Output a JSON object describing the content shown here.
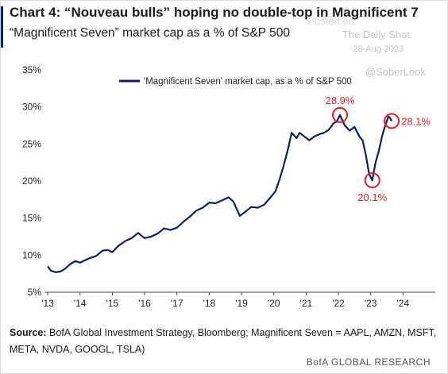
{
  "header": {
    "title": "Chart 4: “Nouveau bulls” hoping no double-top in Magnificent 7",
    "subtitle": "“Magnificent Seven” market cap as a % of S&P 500"
  },
  "watermark": {
    "brand": "The Daily Shot",
    "brand_prefix": "Posted on",
    "date": "28-Aug-2023",
    "handle": "@SoberLook"
  },
  "source": {
    "label": "Source:",
    "text": "BofA Global Investment Strategy, Bloomberg; Magnificent Seven = AAPL, AMZN, MSFT, META, NVDA, GOOGL, TSLA)"
  },
  "footer": {
    "brand": "BofA GLOBAL RESEARCH"
  },
  "colors": {
    "series": "#0d1f5c",
    "annotation": "#e41e26",
    "accent": "#012169"
  },
  "chart_data": {
    "type": "line",
    "title": "",
    "xlabel": "",
    "ylabel": "",
    "xlim": [
      2012.9,
      2025.0
    ],
    "ylim": [
      5,
      35
    ],
    "x_ticks": [
      2013,
      2014,
      2015,
      2016,
      2017,
      2018,
      2019,
      2020,
      2021,
      2022,
      2023,
      2024
    ],
    "x_tick_labels": [
      "'13",
      "'14",
      "'15",
      "'16",
      "'17",
      "'18",
      "'19",
      "'20",
      "'21",
      "'22",
      "'23",
      "'24"
    ],
    "y_ticks": [
      5,
      10,
      15,
      20,
      25,
      30,
      35
    ],
    "y_tick_labels": [
      "5%",
      "10%",
      "15%",
      "20%",
      "25%",
      "30%",
      "35%"
    ],
    "grid": false,
    "legend_position": "top-center",
    "series": [
      {
        "name": "'Magnificent Seven' market cap, as a % of S&P 500",
        "x": [
          2013.0,
          2013.1,
          2013.25,
          2013.4,
          2013.55,
          2013.7,
          2013.85,
          2014.0,
          2014.15,
          2014.3,
          2014.5,
          2014.7,
          2014.85,
          2015.0,
          2015.2,
          2015.4,
          2015.6,
          2015.8,
          2016.0,
          2016.2,
          2016.4,
          2016.6,
          2016.8,
          2017.0,
          2017.2,
          2017.4,
          2017.6,
          2017.8,
          2018.0,
          2018.2,
          2018.4,
          2018.6,
          2018.75,
          2018.95,
          2019.1,
          2019.3,
          2019.5,
          2019.7,
          2019.9,
          2020.05,
          2020.2,
          2020.3,
          2020.45,
          2020.55,
          2020.7,
          2020.8,
          2020.95,
          2021.1,
          2021.25,
          2021.4,
          2021.55,
          2021.7,
          2021.85,
          2021.95,
          2022.05,
          2022.2,
          2022.35,
          2022.5,
          2022.65,
          2022.75,
          2022.85,
          2022.95,
          2023.05,
          2023.15,
          2023.25,
          2023.35,
          2023.45,
          2023.55,
          2023.6,
          2023.65
        ],
        "values": [
          8.5,
          7.9,
          7.7,
          7.8,
          8.2,
          8.8,
          9.2,
          9.0,
          9.3,
          9.6,
          9.9,
          10.6,
          10.7,
          10.4,
          11.3,
          11.9,
          12.3,
          13.0,
          12.3,
          12.5,
          12.9,
          13.6,
          13.4,
          13.7,
          14.5,
          15.2,
          16.0,
          16.4,
          17.1,
          17.0,
          17.4,
          17.8,
          17.2,
          15.3,
          15.8,
          16.5,
          16.4,
          16.8,
          17.8,
          18.6,
          20.5,
          22.0,
          24.5,
          26.5,
          25.8,
          26.5,
          26.0,
          25.5,
          26.0,
          26.3,
          26.5,
          26.9,
          27.8,
          28.0,
          28.9,
          27.5,
          26.8,
          27.3,
          26.0,
          25.5,
          23.5,
          21.0,
          20.1,
          22.5,
          24.0,
          26.0,
          27.5,
          28.7,
          28.5,
          28.1
        ]
      }
    ],
    "annotations": [
      {
        "x": 2022.05,
        "y": 28.9,
        "label": "28.9%",
        "label_position": "above"
      },
      {
        "x": 2023.05,
        "y": 20.1,
        "label": "20.1%",
        "label_position": "below"
      },
      {
        "x": 2023.65,
        "y": 28.1,
        "label": "28.1%",
        "label_position": "right"
      }
    ]
  }
}
